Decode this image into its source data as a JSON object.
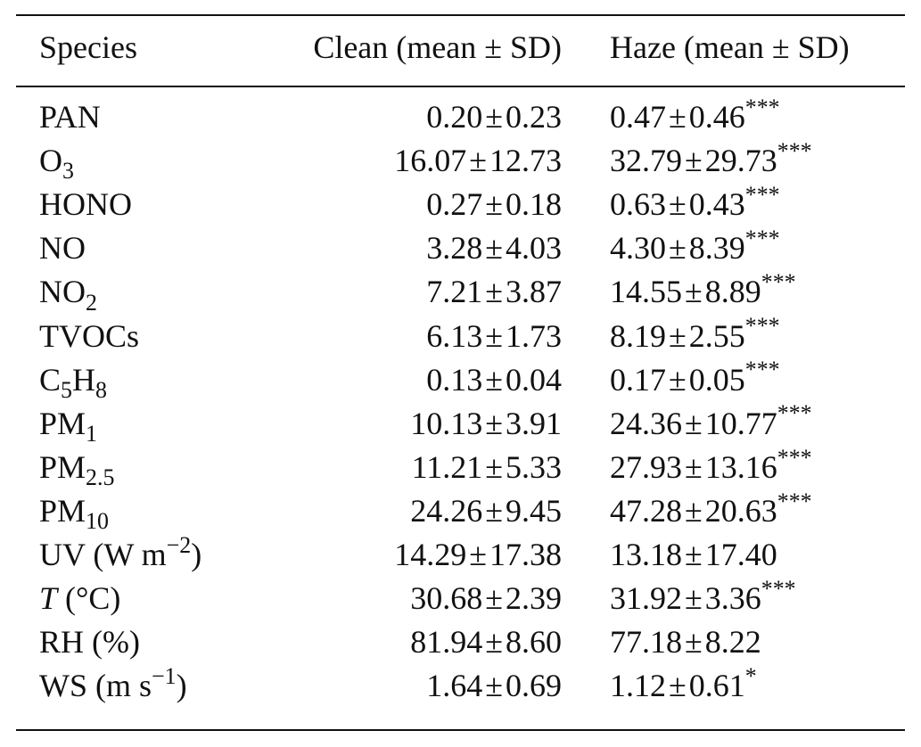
{
  "table": {
    "columns": [
      "Species",
      "Clean (mean ± SD)",
      "Haze (mean ± SD)"
    ],
    "rows": [
      {
        "species": {
          "base": "PAN"
        },
        "clean": {
          "mean": "0.20",
          "sd": "0.23"
        },
        "haze": {
          "mean": "0.47",
          "sd": "0.46",
          "sig": "***"
        }
      },
      {
        "species": {
          "base": "O",
          "sub": "3"
        },
        "clean": {
          "mean": "16.07",
          "sd": "12.73"
        },
        "haze": {
          "mean": "32.79",
          "sd": "29.73",
          "sig": "***"
        }
      },
      {
        "species": {
          "base": "HONO"
        },
        "clean": {
          "mean": "0.27",
          "sd": "0.18"
        },
        "haze": {
          "mean": "0.63",
          "sd": "0.43",
          "sig": "***"
        }
      },
      {
        "species": {
          "base": "NO"
        },
        "clean": {
          "mean": "3.28",
          "sd": "4.03"
        },
        "haze": {
          "mean": "4.30",
          "sd": "8.39",
          "sig": "***"
        }
      },
      {
        "species": {
          "base": "NO",
          "sub": "2"
        },
        "clean": {
          "mean": "7.21",
          "sd": "3.87"
        },
        "haze": {
          "mean": "14.55",
          "sd": "8.89",
          "sig": "***"
        }
      },
      {
        "species": {
          "base": "TVOCs"
        },
        "clean": {
          "mean": "6.13",
          "sd": "1.73"
        },
        "haze": {
          "mean": "8.19",
          "sd": "2.55",
          "sig": "***"
        }
      },
      {
        "species": {
          "base": "C",
          "sub": "5",
          "base2": "H",
          "sub2": "8"
        },
        "clean": {
          "mean": "0.13",
          "sd": "0.04"
        },
        "haze": {
          "mean": "0.17",
          "sd": "0.05",
          "sig": "***"
        }
      },
      {
        "species": {
          "base": "PM",
          "sub": "1"
        },
        "clean": {
          "mean": "10.13",
          "sd": "3.91"
        },
        "haze": {
          "mean": "24.36",
          "sd": "10.77",
          "sig": "***"
        }
      },
      {
        "species": {
          "base": "PM",
          "sub": "2.5"
        },
        "clean": {
          "mean": "11.21",
          "sd": "5.33"
        },
        "haze": {
          "mean": "27.93",
          "sd": "13.16",
          "sig": "***"
        }
      },
      {
        "species": {
          "base": "PM",
          "sub": "10"
        },
        "clean": {
          "mean": "24.26",
          "sd": "9.45"
        },
        "haze": {
          "mean": "47.28",
          "sd": "20.63",
          "sig": "***"
        }
      },
      {
        "species": {
          "base": "UV (W m",
          "sup": "−2",
          "tail": ")"
        },
        "clean": {
          "mean": "14.29",
          "sd": "17.38"
        },
        "haze": {
          "mean": "13.18",
          "sd": "17.40",
          "sig": ""
        }
      },
      {
        "species": {
          "italic": "T",
          "tail": " (°C)"
        },
        "clean": {
          "mean": "30.68",
          "sd": "2.39"
        },
        "haze": {
          "mean": "31.92",
          "sd": "3.36",
          "sig": "***"
        }
      },
      {
        "species": {
          "base": "RH (%)"
        },
        "clean": {
          "mean": "81.94",
          "sd": "8.60"
        },
        "haze": {
          "mean": "77.18",
          "sd": "8.22",
          "sig": ""
        }
      },
      {
        "species": {
          "base": "WS (m s",
          "sup": "−1",
          "tail": ")"
        },
        "clean": {
          "mean": "1.64",
          "sd": "0.69"
        },
        "haze": {
          "mean": "1.12",
          "sd": "0.61",
          "sig": "*"
        }
      }
    ]
  }
}
